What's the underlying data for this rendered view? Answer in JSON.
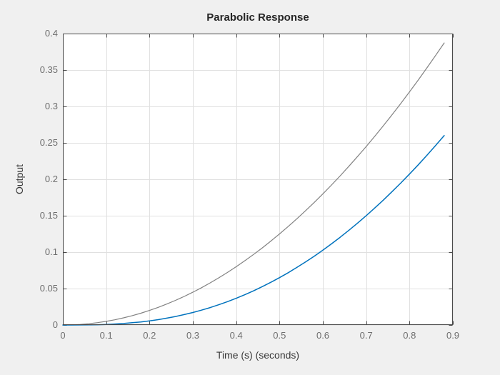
{
  "chart_data": {
    "type": "line",
    "title": "Parabolic Response",
    "xlabel": "Time (s) (seconds)",
    "ylabel": "Output",
    "xlim": [
      0,
      0.9
    ],
    "ylim": [
      0,
      0.4
    ],
    "grid": true,
    "legend": false,
    "xticks": [
      {
        "v": 0.0,
        "label": "0"
      },
      {
        "v": 0.1,
        "label": "0.1"
      },
      {
        "v": 0.2,
        "label": "0.2"
      },
      {
        "v": 0.3,
        "label": "0.3"
      },
      {
        "v": 0.4,
        "label": "0.4"
      },
      {
        "v": 0.5,
        "label": "0.5"
      },
      {
        "v": 0.6,
        "label": "0.6"
      },
      {
        "v": 0.7,
        "label": "0.7"
      },
      {
        "v": 0.8,
        "label": "0.8"
      },
      {
        "v": 0.9,
        "label": "0.9"
      }
    ],
    "yticks": [
      {
        "v": 0.0,
        "label": "0"
      },
      {
        "v": 0.05,
        "label": "0.05"
      },
      {
        "v": 0.1,
        "label": "0.1"
      },
      {
        "v": 0.15,
        "label": "0.15"
      },
      {
        "v": 0.2,
        "label": "0.2"
      },
      {
        "v": 0.25,
        "label": "0.25"
      },
      {
        "v": 0.3,
        "label": "0.3"
      },
      {
        "v": 0.35,
        "label": "0.35"
      },
      {
        "v": 0.4,
        "label": "0.4"
      }
    ],
    "x": [
      0,
      0.02,
      0.04,
      0.06,
      0.08,
      0.1,
      0.12,
      0.14,
      0.16,
      0.18,
      0.2,
      0.22,
      0.24,
      0.26,
      0.28,
      0.3,
      0.32,
      0.34,
      0.36,
      0.38,
      0.4,
      0.42,
      0.44,
      0.46,
      0.48,
      0.5,
      0.52,
      0.54,
      0.56,
      0.58,
      0.6,
      0.62,
      0.64,
      0.66,
      0.68,
      0.7,
      0.72,
      0.74,
      0.76,
      0.78,
      0.8,
      0.82,
      0.84,
      0.86,
      0.88
    ],
    "series": [
      {
        "name": "gray-curve",
        "color": "#828282",
        "width": 1.2,
        "values": [
          0,
          0.0002,
          0.0008,
          0.0018,
          0.0032,
          0.005,
          0.0072,
          0.0098,
          0.0128,
          0.0162,
          0.02,
          0.0242,
          0.0288,
          0.0338,
          0.0392,
          0.045,
          0.0512,
          0.0578,
          0.0648,
          0.0722,
          0.08,
          0.0882,
          0.0968,
          0.1058,
          0.1152,
          0.125,
          0.1352,
          0.1458,
          0.1568,
          0.1682,
          0.18,
          0.1922,
          0.2048,
          0.2178,
          0.2312,
          0.245,
          0.2592,
          0.2738,
          0.2888,
          0.3042,
          0.32,
          0.3362,
          0.3528,
          0.3698,
          0.3872
        ]
      },
      {
        "name": "blue-curve",
        "color": "#0072BD",
        "width": 1.5,
        "values": [
          0,
          0.0,
          0.0001,
          0.0002,
          0.0004,
          0.0008,
          0.0014,
          0.0021,
          0.0031,
          0.0042,
          0.0057,
          0.0074,
          0.0094,
          0.0117,
          0.0143,
          0.0172,
          0.0204,
          0.0239,
          0.0278,
          0.0321,
          0.0367,
          0.0416,
          0.0469,
          0.0526,
          0.0586,
          0.065,
          0.0718,
          0.079,
          0.0865,
          0.0944,
          0.1027,
          0.1114,
          0.1205,
          0.13,
          0.1398,
          0.1501,
          0.1607,
          0.1717,
          0.1832,
          0.195,
          0.2072,
          0.2198,
          0.2328,
          0.2462,
          0.26
        ]
      }
    ],
    "colors": {
      "figure_bg": "#f0f0f0",
      "plot_bg": "#ffffff",
      "grid": "#e0e0e0",
      "axis": "#4a4a4a",
      "tick_label": "#6e6e6e"
    }
  }
}
